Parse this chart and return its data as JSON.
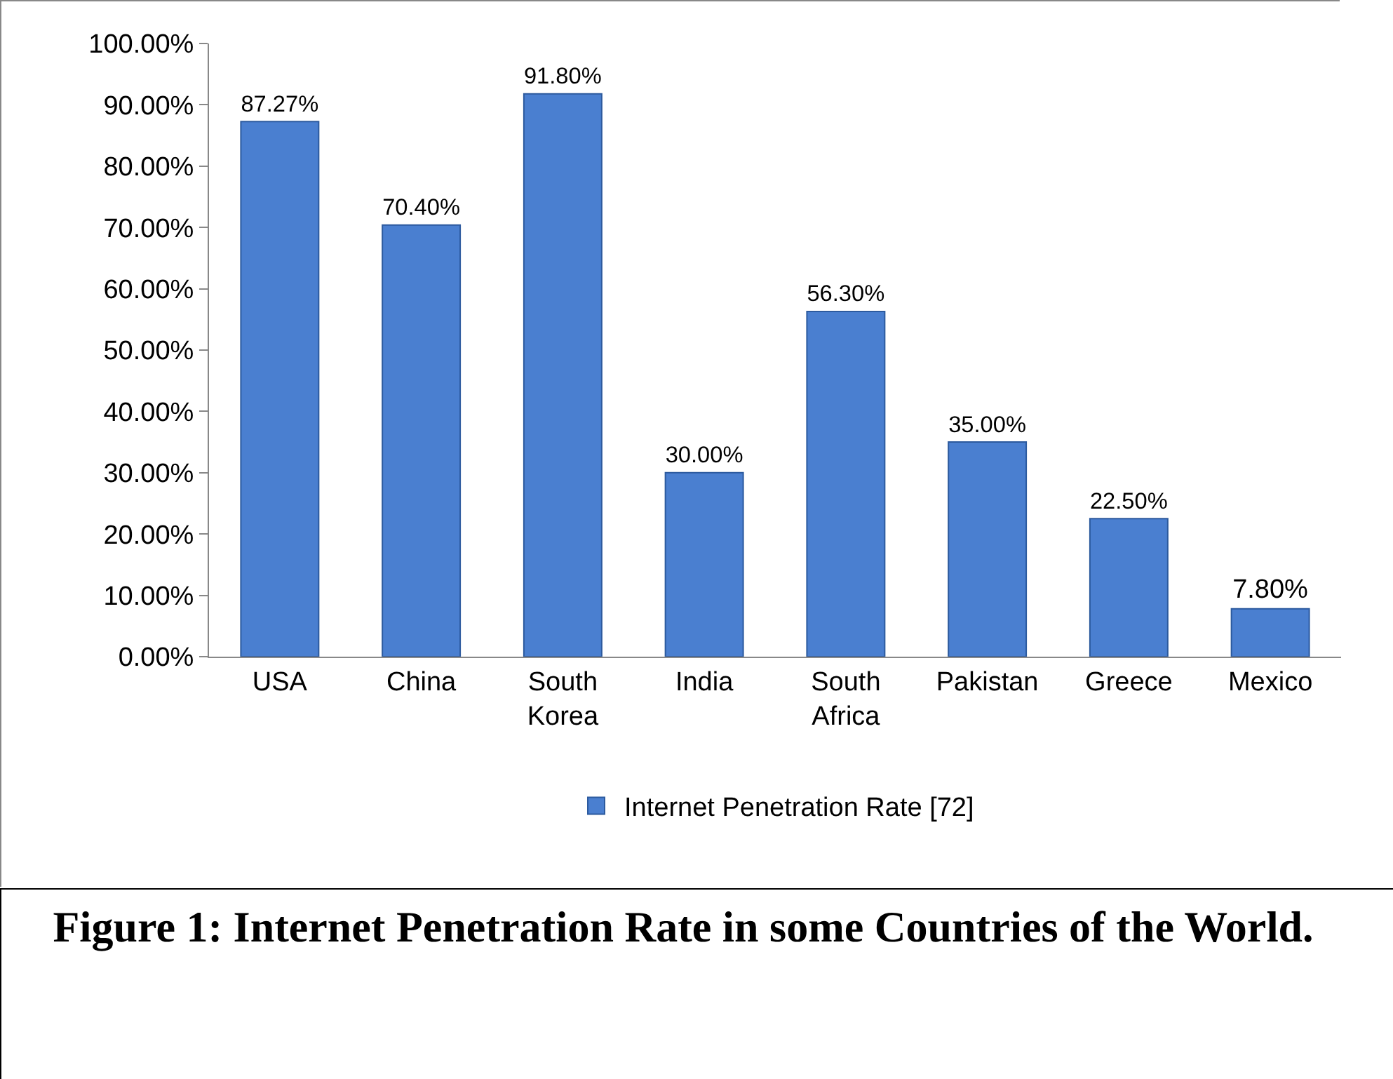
{
  "chart_data": {
    "type": "bar",
    "categories": [
      "USA",
      "China",
      "South Korea",
      "India",
      "South Africa",
      "Pakistan",
      "Greece",
      "Mexico"
    ],
    "series": [
      {
        "name": "Internet Penetration Rate [72]",
        "color": "#4a7fd0",
        "values": [
          87.27,
          70.4,
          91.8,
          30,
          56.3,
          35,
          22.5,
          7.8
        ],
        "value_labels": [
          "87.27%",
          "70.40%",
          "91.80%",
          "30.00%",
          "56.30%",
          "35.00%",
          "22.50%",
          "7.80%"
        ]
      }
    ],
    "ylim": [
      0,
      100
    ],
    "yticks": [
      {
        "value": 0,
        "label": "0.00%"
      },
      {
        "value": 10,
        "label": "10.00%"
      },
      {
        "value": 20,
        "label": "20.00%"
      },
      {
        "value": 30,
        "label": "30.00%"
      },
      {
        "value": 40,
        "label": "40.00%"
      },
      {
        "value": 50,
        "label": "50.00%"
      },
      {
        "value": 60,
        "label": "60.00%"
      },
      {
        "value": 70,
        "label": "70.00%"
      },
      {
        "value": 80,
        "label": "80.00%"
      },
      {
        "value": 90,
        "label": "90.00%"
      },
      {
        "value": 100,
        "label": "100.00%"
      }
    ],
    "grid": false,
    "legend": "bottom",
    "annotations": [
      "Figure 1: Internet Penetration Rate in some Countries of the World."
    ]
  }
}
